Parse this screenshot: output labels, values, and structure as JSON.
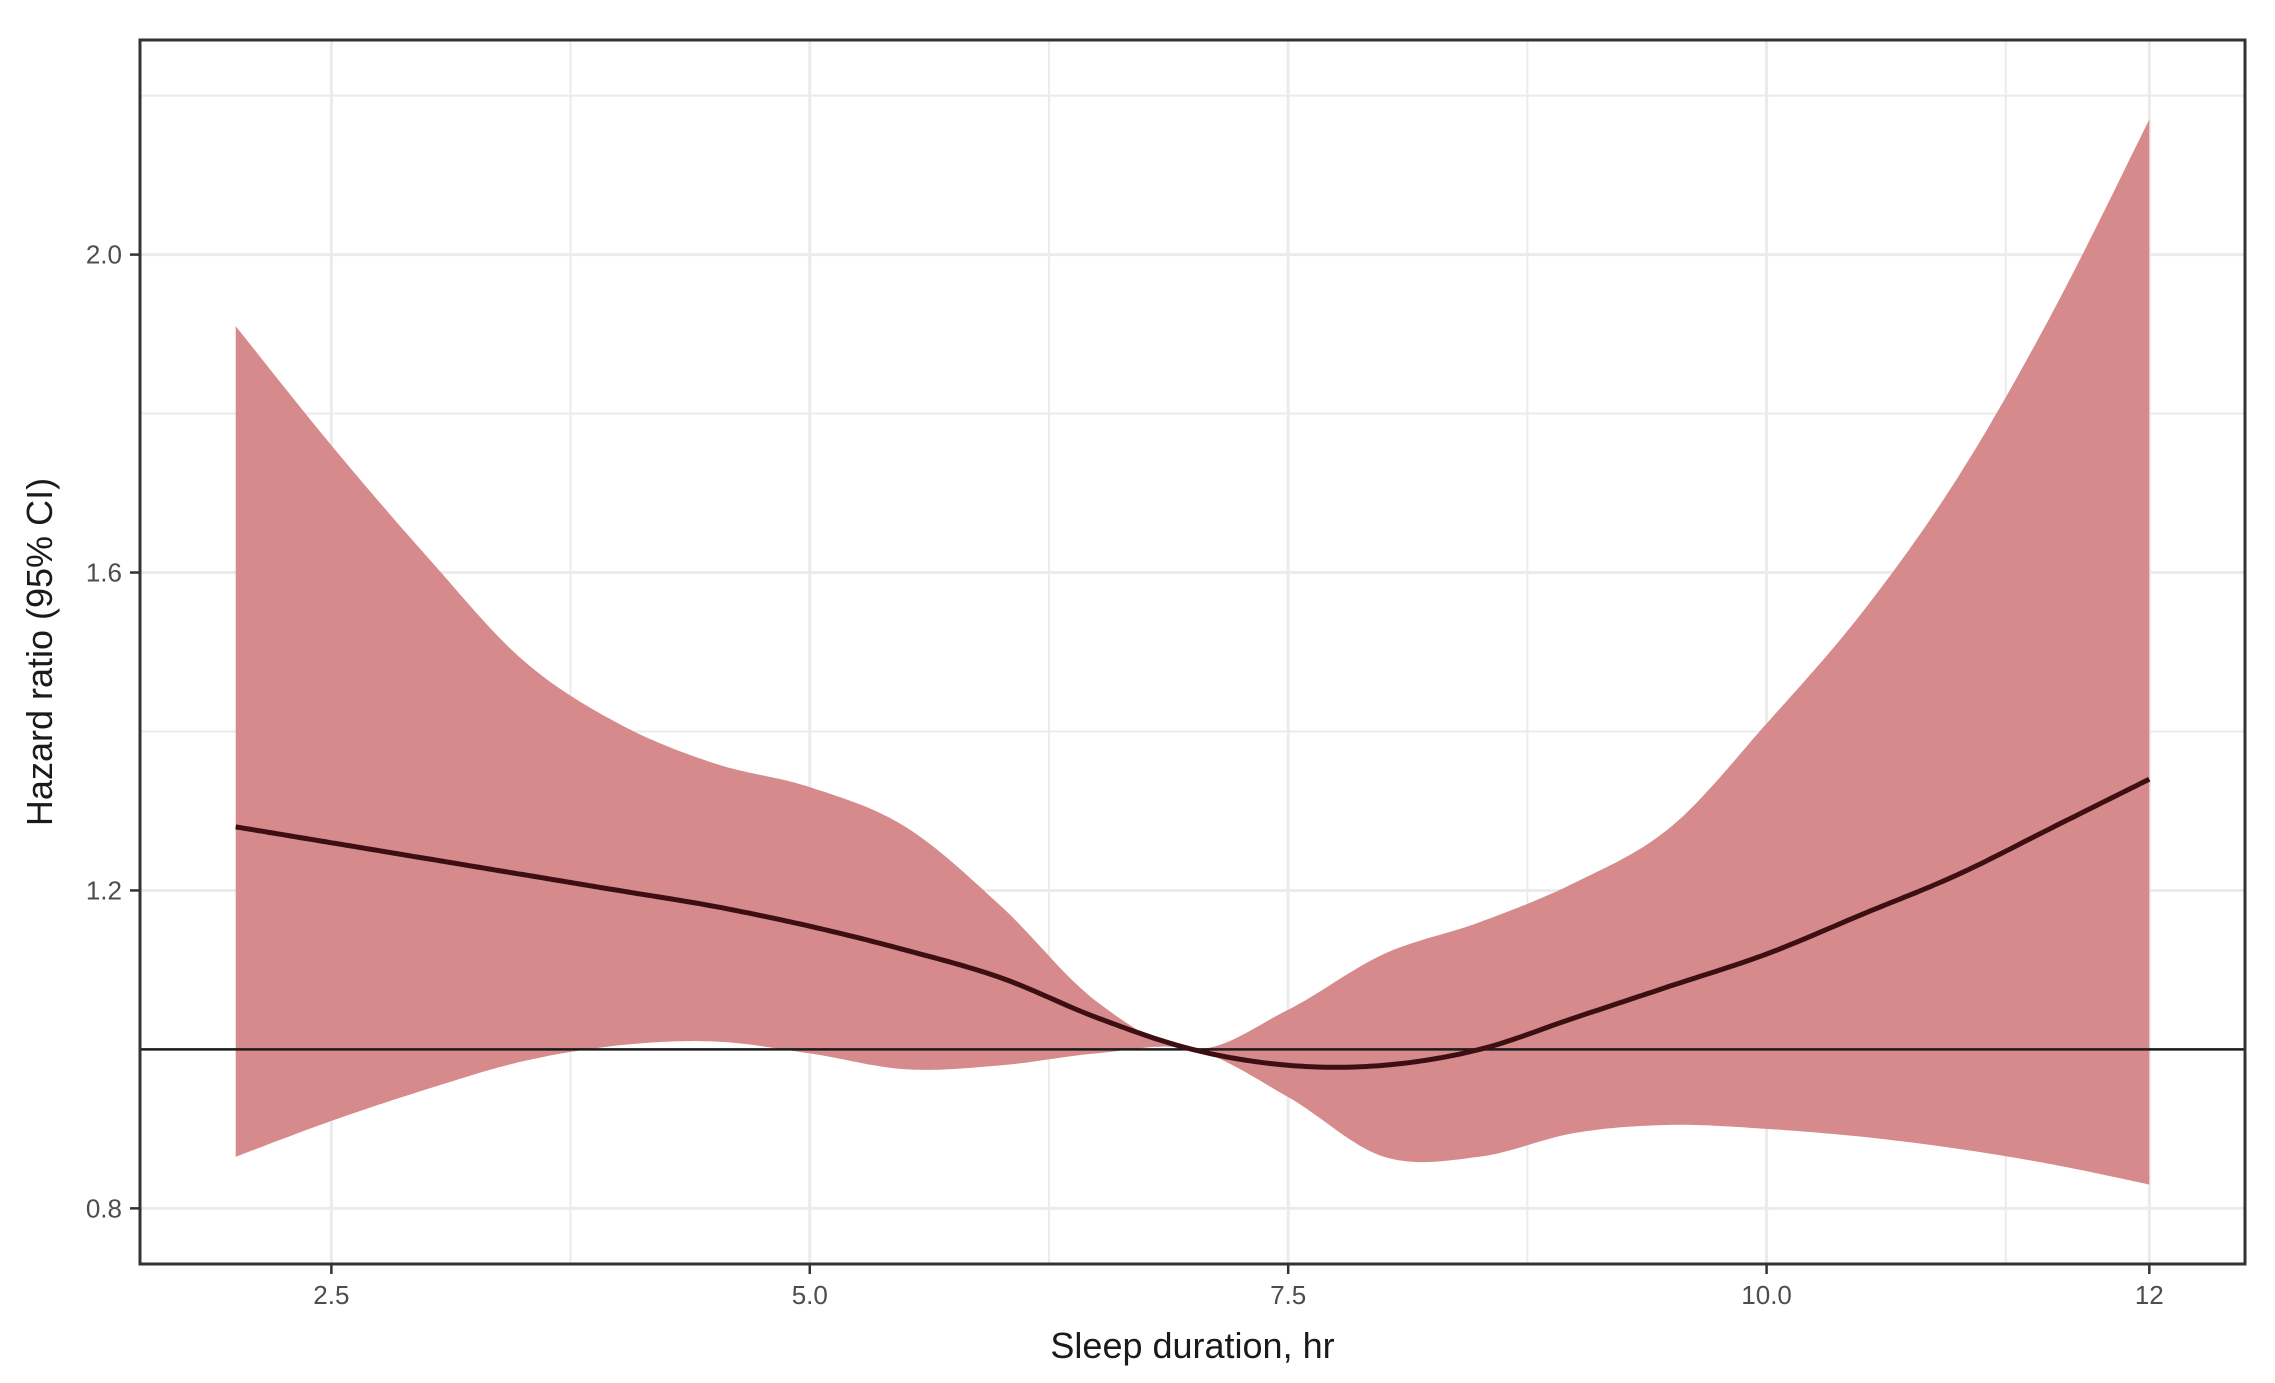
{
  "chart_data": {
    "type": "line",
    "title": "",
    "xlabel": "Sleep duration, hr",
    "ylabel": "Hazard ratio (95% CI)",
    "xlim": [
      1.5,
      12.5
    ],
    "ylim": [
      0.73,
      2.27
    ],
    "x_ticks": [
      2.5,
      5.0,
      7.5,
      10.0,
      12
    ],
    "x_tick_labels": [
      "2.5",
      "5.0",
      "7.5",
      "10.0",
      "12"
    ],
    "y_ticks": [
      0.8,
      1.2,
      1.6,
      2.0
    ],
    "y_tick_labels": [
      "0.8",
      "1.2",
      "1.6",
      "2.0"
    ],
    "x_minor_gridlines": [
      3.75,
      6.25,
      8.75,
      11.25
    ],
    "y_minor_gridlines": [
      1.0,
      1.4,
      1.8,
      2.2
    ],
    "grid": true,
    "reference_line_y": 1.0,
    "series": [
      {
        "x": [
          2.0,
          2.5,
          3.0,
          3.5,
          4.0,
          4.5,
          5.0,
          5.5,
          6.0,
          6.5,
          7.0,
          7.5,
          8.0,
          8.5,
          9.0,
          9.5,
          10.0,
          10.5,
          11.0,
          11.5,
          12.0
        ],
        "y": [
          1.28,
          1.26,
          1.24,
          1.22,
          1.2,
          1.18,
          1.155,
          1.125,
          1.09,
          1.04,
          1.0,
          0.98,
          0.98,
          1.0,
          1.04,
          1.08,
          1.12,
          1.17,
          1.22,
          1.28,
          1.34
        ],
        "lower": [
          0.865,
          0.91,
          0.95,
          0.985,
          1.005,
          1.01,
          0.995,
          0.975,
          0.98,
          0.995,
          1.0,
          0.94,
          0.865,
          0.865,
          0.895,
          0.905,
          0.9,
          0.89,
          0.875,
          0.855,
          0.83
        ],
        "upper": [
          1.91,
          1.76,
          1.62,
          1.49,
          1.41,
          1.36,
          1.33,
          1.28,
          1.18,
          1.06,
          1.0,
          1.05,
          1.12,
          1.16,
          1.21,
          1.28,
          1.41,
          1.55,
          1.72,
          1.93,
          2.17
        ]
      }
    ],
    "colors": {
      "band": "#d68a8b",
      "line": "#3d0f12",
      "reference": "#1a1a1a",
      "grid": "#ebebeb",
      "panel_border": "#333333"
    }
  }
}
